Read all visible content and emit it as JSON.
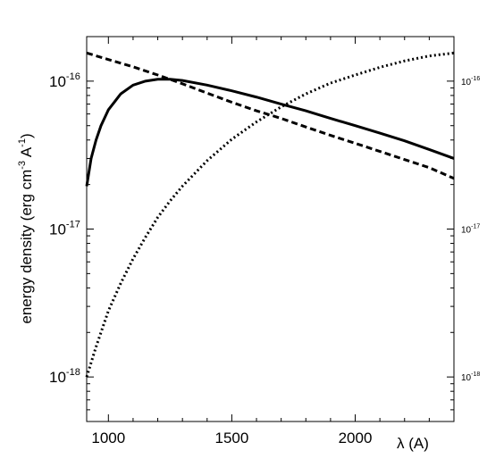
{
  "chart_data": {
    "type": "line",
    "title": "",
    "xlabel": "λ (A)",
    "ylabel_main": "energy density (erg cm",
    "ylabel_exp": "-3",
    "ylabel_mid": " A",
    "ylabel_exp2": "-1",
    "ylabel_end": ")",
    "xlim": [
      912,
      2400
    ],
    "ylim": [
      5e-19,
      2e-16
    ],
    "yscale": "log",
    "grid": false,
    "legend": "none",
    "x_ticks": [
      1000,
      1500,
      2000
    ],
    "x_tick_labels": [
      "1000",
      "1500",
      "2000"
    ],
    "y_ticks": [
      1e-18,
      1e-17,
      1e-16
    ],
    "y_tick_labels": [
      {
        "base": "10",
        "exp": "-18"
      },
      {
        "base": "10",
        "exp": "-17"
      },
      {
        "base": "10",
        "exp": "-16"
      }
    ],
    "right_tick_labels": [
      {
        "base": "10",
        "exp": "-18"
      },
      {
        "base": "10",
        "exp": "-17"
      },
      {
        "base": "10",
        "exp": "-16"
      }
    ],
    "series": [
      {
        "style": "solid",
        "x": [
          912,
          930,
          950,
          970,
          1000,
          1050,
          1100,
          1150,
          1200,
          1250,
          1300,
          1400,
          1500,
          1600,
          1700,
          1800,
          1900,
          2000,
          2100,
          2200,
          2300,
          2400
        ],
        "y": [
          1.95e-17,
          3e-17,
          4e-17,
          5e-17,
          6.4e-17,
          8.2e-17,
          9.4e-17,
          1e-16,
          1.03e-16,
          1.03e-16,
          1.01e-16,
          9.4e-17,
          8.6e-17,
          7.8e-17,
          7e-17,
          6.3e-17,
          5.6e-17,
          5e-17,
          4.45e-17,
          3.95e-17,
          3.45e-17,
          3e-17
        ]
      },
      {
        "style": "dashed",
        "x": [
          912,
          1000,
          1100,
          1200,
          1300,
          1400,
          1500,
          1600,
          1700,
          1800,
          1900,
          2000,
          2100,
          2200,
          2300,
          2400
        ],
        "y": [
          1.55e-16,
          1.4e-16,
          1.25e-16,
          1.1e-16,
          9.6e-17,
          8.3e-17,
          7.2e-17,
          6.3e-17,
          5.6e-17,
          4.9e-17,
          4.3e-17,
          3.8e-17,
          3.35e-17,
          2.95e-17,
          2.6e-17,
          2.2e-17
        ]
      },
      {
        "style": "dotted",
        "x": [
          912,
          950,
          1000,
          1050,
          1100,
          1150,
          1200,
          1250,
          1300,
          1400,
          1500,
          1600,
          1700,
          1800,
          1900,
          2000,
          2100,
          2200,
          2300,
          2400
        ],
        "y": [
          1e-18,
          1.6e-18,
          2.8e-18,
          4.3e-18,
          6.3e-18,
          8.8e-18,
          1.2e-17,
          1.55e-17,
          1.95e-17,
          2.9e-17,
          4.05e-17,
          5.3e-17,
          6.7e-17,
          8.2e-17,
          9.7e-17,
          1.1e-16,
          1.24e-16,
          1.37e-16,
          1.48e-16,
          1.55e-16
        ]
      }
    ]
  }
}
